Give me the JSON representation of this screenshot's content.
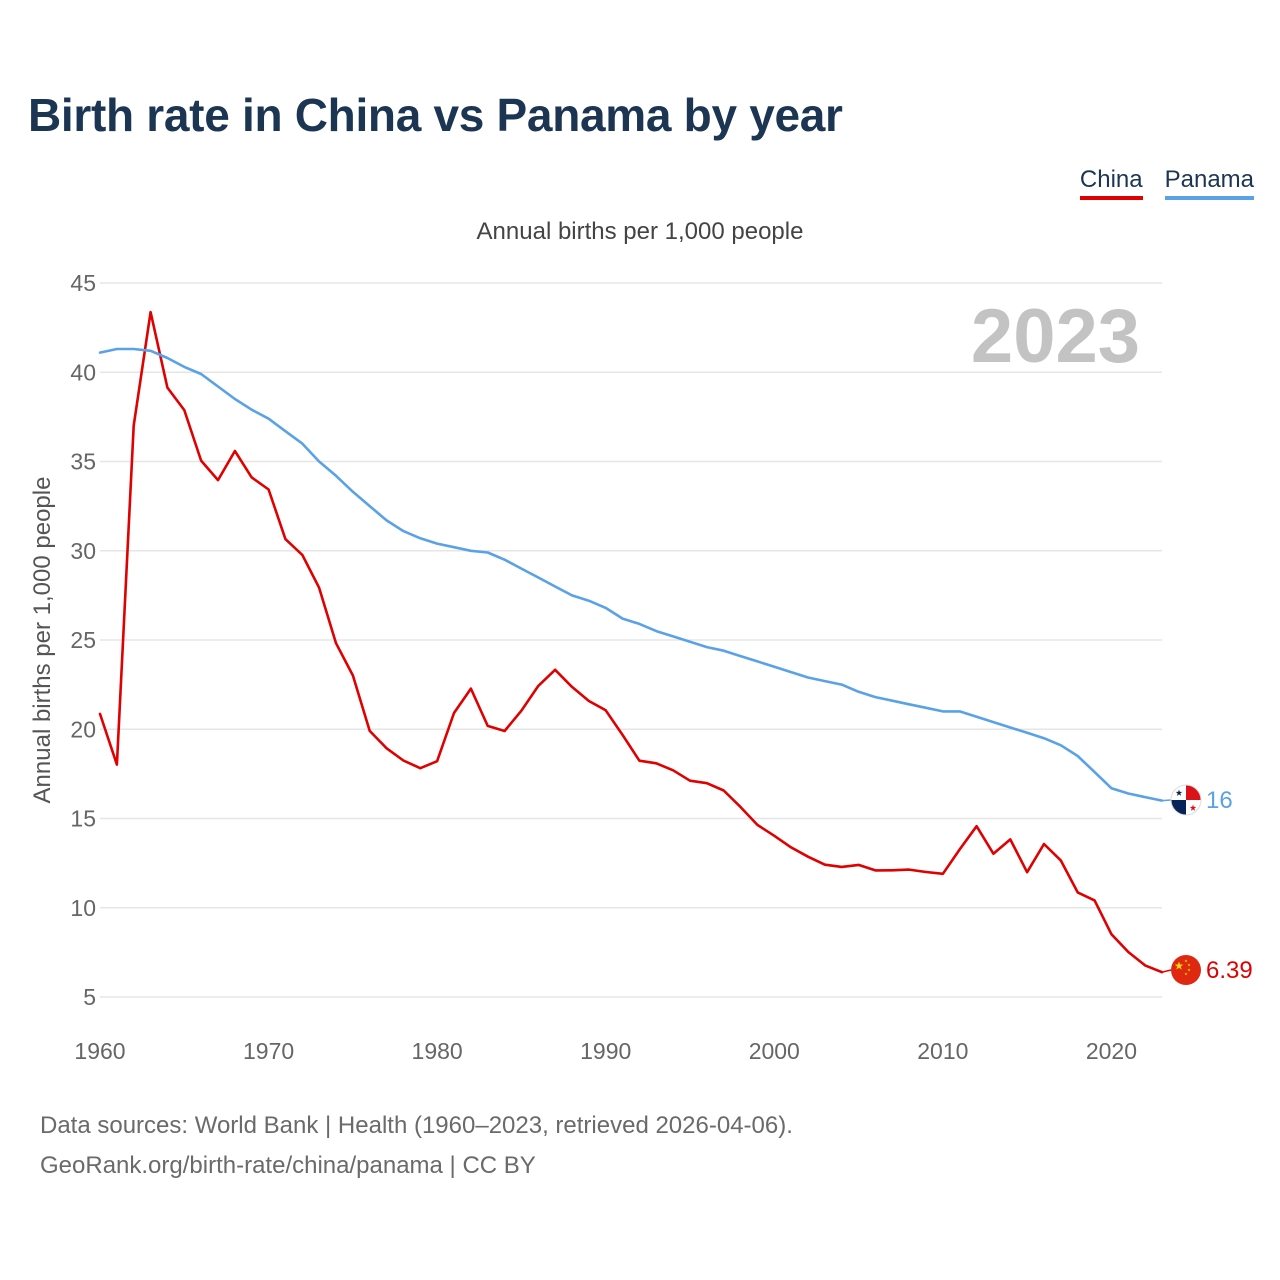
{
  "title": "Birth rate in China vs Panama by year",
  "subtitle": "Annual births per 1,000 people",
  "legend": [
    {
      "name": "China",
      "color": "#e00000"
    },
    {
      "name": "Panama",
      "color": "#5aa2e6"
    }
  ],
  "footer": {
    "line1": "Data sources: World Bank | Health (1960–2023, retrieved 2026-04-06).",
    "line2": "GeoRank.org/birth-rate/china/panama | CC BY"
  },
  "chart_data": {
    "type": "line",
    "title": "Birth rate in China vs Panama by year",
    "subtitle": "Annual births per 1,000 people",
    "xlabel": "",
    "ylabel": "Annual births per 1,000 people",
    "xlim": [
      1960,
      2023
    ],
    "ylim": [
      5,
      45
    ],
    "xticks": [
      1960,
      1970,
      1980,
      1990,
      2000,
      2010,
      2020
    ],
    "yticks": [
      5,
      10,
      15,
      20,
      25,
      30,
      35,
      40,
      45
    ],
    "grid": true,
    "watermark": "2023",
    "legend_position": "top-right",
    "x": [
      1960,
      1961,
      1962,
      1963,
      1964,
      1965,
      1966,
      1967,
      1968,
      1969,
      1970,
      1971,
      1972,
      1973,
      1974,
      1975,
      1976,
      1977,
      1978,
      1979,
      1980,
      1981,
      1982,
      1983,
      1984,
      1985,
      1986,
      1987,
      1988,
      1989,
      1990,
      1991,
      1992,
      1993,
      1994,
      1995,
      1996,
      1997,
      1998,
      1999,
      2000,
      2001,
      2002,
      2003,
      2004,
      2005,
      2006,
      2007,
      2008,
      2009,
      2010,
      2011,
      2012,
      2013,
      2014,
      2015,
      2016,
      2017,
      2018,
      2019,
      2020,
      2021,
      2022,
      2023
    ],
    "series": [
      {
        "name": "China",
        "color": "#e00000",
        "flag": "china-flag",
        "end_label": "6.39",
        "values": [
          20.86,
          18.02,
          37.01,
          43.37,
          39.14,
          37.88,
          35.05,
          33.96,
          35.59,
          34.11,
          33.43,
          30.65,
          29.77,
          27.93,
          24.82,
          23.01,
          19.91,
          18.93,
          18.25,
          17.82,
          18.21,
          20.91,
          22.28,
          20.19,
          19.9,
          21.04,
          22.43,
          23.33,
          22.37,
          21.58,
          21.06,
          19.68,
          18.24,
          18.09,
          17.7,
          17.12,
          16.98,
          16.57,
          15.64,
          14.64,
          14.03,
          13.38,
          12.86,
          12.41,
          12.29,
          12.4,
          12.09,
          12.1,
          12.14,
          12.0,
          11.9,
          13.27,
          14.57,
          13.03,
          13.83,
          11.99,
          13.57,
          12.64,
          10.86,
          10.41,
          8.52,
          7.52,
          6.77,
          6.39
        ]
      },
      {
        "name": "Panama",
        "color": "#5aa2e6",
        "flag": "panama-flag",
        "end_label": "16",
        "values": [
          41.1,
          41.3,
          41.3,
          41.2,
          40.8,
          40.3,
          39.9,
          39.2,
          38.5,
          37.9,
          37.4,
          36.7,
          36.0,
          35.0,
          34.2,
          33.3,
          32.5,
          31.7,
          31.1,
          30.7,
          30.4,
          30.2,
          30.0,
          29.9,
          29.5,
          29.0,
          28.5,
          28.0,
          27.5,
          27.2,
          26.8,
          26.2,
          25.9,
          25.5,
          25.2,
          24.9,
          24.6,
          24.4,
          24.1,
          23.8,
          23.5,
          23.2,
          22.9,
          22.7,
          22.5,
          22.1,
          21.8,
          21.6,
          21.4,
          21.2,
          21.0,
          21.0,
          20.7,
          20.4,
          20.1,
          19.8,
          19.5,
          19.1,
          18.5,
          17.6,
          16.7,
          16.4,
          16.2,
          16.0
        ]
      }
    ]
  }
}
